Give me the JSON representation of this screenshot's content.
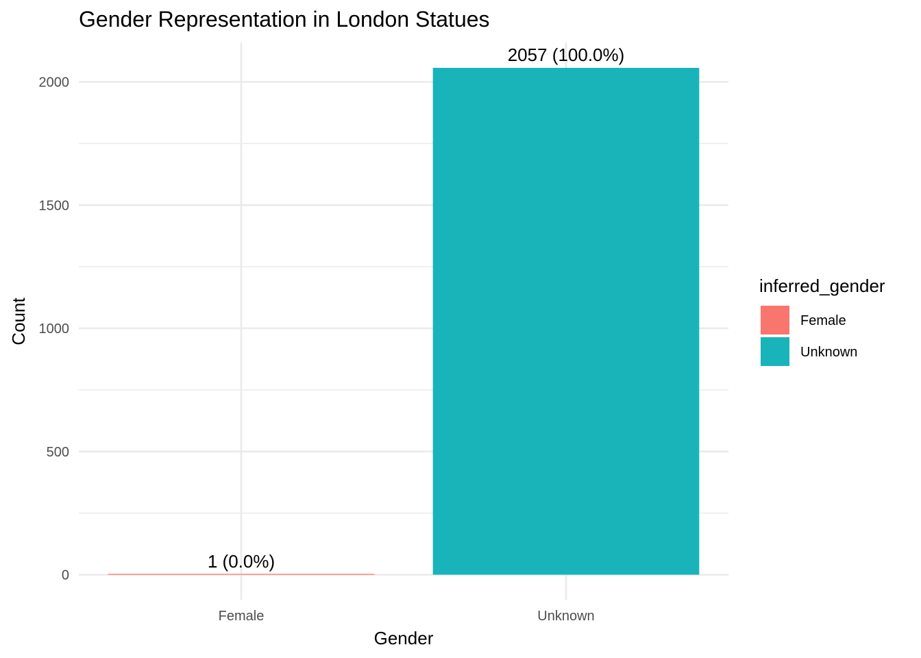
{
  "chart_data": {
    "type": "bar",
    "title": "Gender Representation in London Statues",
    "xlabel": "Gender",
    "ylabel": "Count",
    "categories": [
      "Female",
      "Unknown"
    ],
    "values": [
      1,
      2057
    ],
    "data_labels": [
      "1 (0.0%)",
      "2057 (100.0%)"
    ],
    "colors": [
      "#F8766D",
      "#19B4B9"
    ],
    "ylim": [
      0,
      2160
    ],
    "y_ticks": [
      0,
      500,
      1000,
      1500,
      2000
    ],
    "y_tick_labels": [
      "0",
      "500",
      "1000",
      "1500",
      "2000"
    ],
    "y_minor_ticks": [
      250,
      750,
      1250,
      1750
    ],
    "grid": true,
    "legend": {
      "title": "inferred_gender",
      "position": "right",
      "entries": [
        {
          "label": "Female",
          "color": "#F8766D"
        },
        {
          "label": "Unknown",
          "color": "#19B4B9"
        }
      ]
    }
  }
}
